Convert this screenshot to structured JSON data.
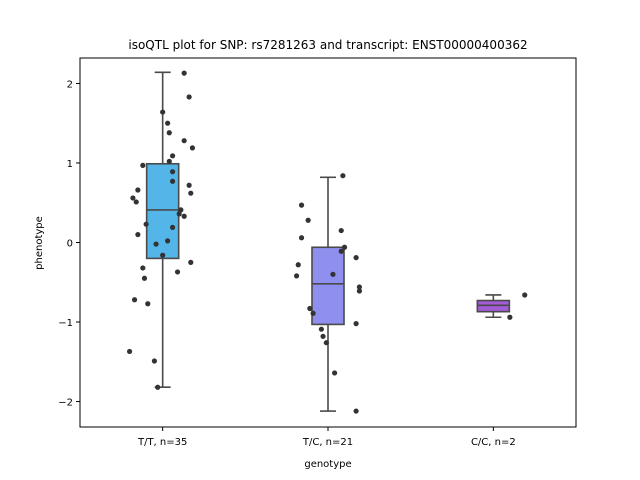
{
  "chart_data": {
    "type": "box",
    "title": "isoQTL plot for SNP: rs7281263 and transcript: ENST00000400362",
    "xlabel": "genotype",
    "ylabel": "phenotype",
    "ylim": [
      -2.32,
      2.32
    ],
    "yticks": [
      -2,
      -1,
      0,
      1,
      2
    ],
    "ytick_labels": [
      "−2",
      "−1",
      "0",
      "1",
      "2"
    ],
    "grid": false,
    "categories": [
      "T/T, n=35",
      "T/C, n=21",
      "C/C, n=2"
    ],
    "boxes": [
      {
        "category": "T/T, n=35",
        "color": "#54b5e9",
        "whisker_low": -1.82,
        "q1": -0.2,
        "median": 0.41,
        "q3": 0.99,
        "whisker_high": 2.14
      },
      {
        "category": "T/C, n=21",
        "color": "#8f8ff0",
        "whisker_low": -2.12,
        "q1": -1.03,
        "median": -0.52,
        "q3": -0.06,
        "whisker_high": 0.82
      },
      {
        "category": "C/C, n=2",
        "color": "#a35bd6",
        "whisker_low": -0.94,
        "q1": -0.87,
        "median": -0.79,
        "q3": -0.73,
        "whisker_high": -0.66
      }
    ],
    "points": [
      [
        0.13,
        2.13
      ],
      [
        0.16,
        1.83
      ],
      [
        0.0,
        1.64
      ],
      [
        0.03,
        1.5
      ],
      [
        0.04,
        1.38
      ],
      [
        0.13,
        1.28
      ],
      [
        0.18,
        1.19
      ],
      [
        0.06,
        1.09
      ],
      [
        0.04,
        1.02
      ],
      [
        -0.12,
        0.97
      ],
      [
        0.06,
        0.89
      ],
      [
        0.06,
        0.77
      ],
      [
        0.16,
        0.72
      ],
      [
        -0.15,
        0.66
      ],
      [
        0.17,
        0.62
      ],
      [
        -0.18,
        0.56
      ],
      [
        -0.16,
        0.51
      ],
      [
        0.11,
        0.41
      ],
      [
        0.1,
        0.36
      ],
      [
        0.13,
        0.33
      ],
      [
        -0.1,
        0.23
      ],
      [
        0.06,
        0.19
      ],
      [
        -0.15,
        0.1
      ],
      [
        0.03,
        0.02
      ],
      [
        -0.04,
        -0.02
      ],
      [
        0.0,
        -0.16
      ],
      [
        -0.12,
        -0.32
      ],
      [
        0.09,
        -0.37
      ],
      [
        -0.11,
        -0.45
      ],
      [
        -0.17,
        -0.72
      ],
      [
        -0.09,
        -0.77
      ],
      [
        -0.2,
        -1.37
      ],
      [
        -0.05,
        -1.49
      ],
      [
        -0.03,
        -1.82
      ],
      [
        0.17,
        -0.25
      ],
      [
        1.09,
        0.84
      ],
      [
        0.84,
        0.47
      ],
      [
        0.88,
        0.28
      ],
      [
        1.08,
        0.15
      ],
      [
        0.84,
        0.06
      ],
      [
        1.1,
        -0.06
      ],
      [
        1.08,
        -0.11
      ],
      [
        1.17,
        -0.19
      ],
      [
        0.82,
        -0.28
      ],
      [
        0.81,
        -0.42
      ],
      [
        1.19,
        -0.56
      ],
      [
        1.19,
        -0.61
      ],
      [
        0.89,
        -0.83
      ],
      [
        0.91,
        -0.89
      ],
      [
        1.17,
        -1.02
      ],
      [
        0.96,
        -1.09
      ],
      [
        0.97,
        -1.18
      ],
      [
        0.99,
        -1.26
      ],
      [
        1.04,
        -1.64
      ],
      [
        1.17,
        -2.12
      ],
      [
        1.03,
        -0.4
      ],
      [
        2.19,
        -0.66
      ],
      [
        2.1,
        -0.94
      ]
    ]
  }
}
